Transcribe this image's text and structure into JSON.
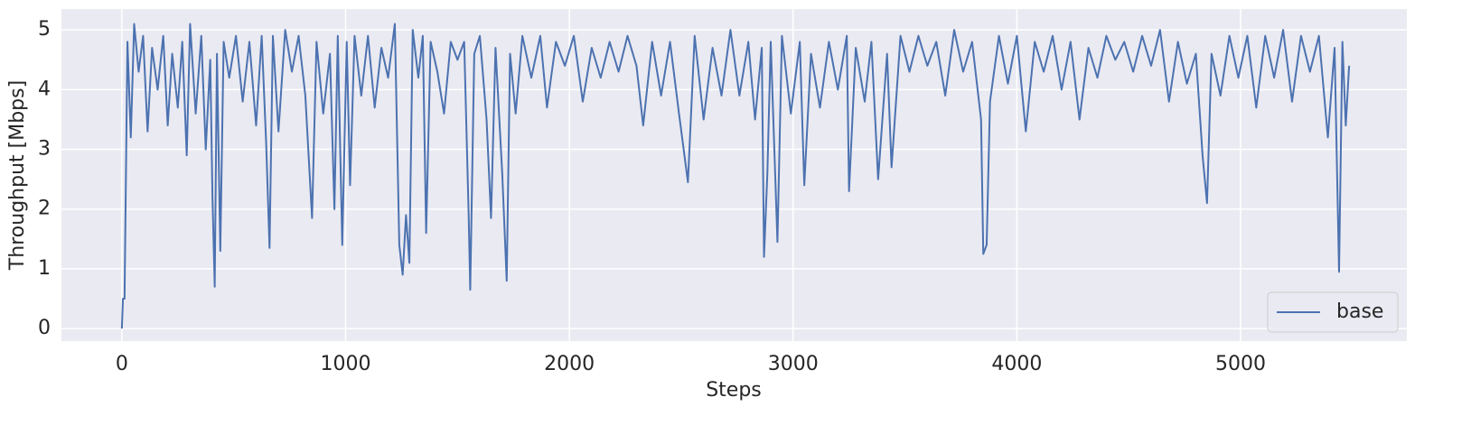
{
  "chart_data": {
    "type": "line",
    "xlabel": "Steps",
    "ylabel": "Throughput [Mbps]",
    "xlim": [
      -270,
      5743
    ],
    "ylim": [
      -0.21,
      5.35
    ],
    "xticks": [
      0,
      1000,
      2000,
      3000,
      4000,
      5000
    ],
    "yticks": [
      0,
      1,
      2,
      3,
      4,
      5
    ],
    "grid": true,
    "legend": "lower right",
    "x": [
      0,
      5,
      12,
      25,
      40,
      55,
      75,
      95,
      115,
      135,
      160,
      185,
      205,
      225,
      250,
      270,
      290,
      305,
      330,
      355,
      375,
      395,
      405,
      415,
      425,
      440,
      455,
      480,
      510,
      540,
      570,
      600,
      625,
      645,
      660,
      675,
      700,
      730,
      760,
      790,
      820,
      850,
      870,
      900,
      930,
      950,
      965,
      985,
      1005,
      1020,
      1040,
      1070,
      1100,
      1130,
      1160,
      1190,
      1220,
      1240,
      1255,
      1270,
      1285,
      1300,
      1325,
      1345,
      1360,
      1380,
      1410,
      1440,
      1470,
      1500,
      1530,
      1550,
      1557,
      1575,
      1600,
      1630,
      1650,
      1670,
      1700,
      1720,
      1735,
      1760,
      1790,
      1830,
      1870,
      1900,
      1940,
      1980,
      2020,
      2060,
      2100,
      2140,
      2180,
      2220,
      2260,
      2300,
      2330,
      2370,
      2410,
      2450,
      2490,
      2530,
      2560,
      2600,
      2640,
      2680,
      2720,
      2760,
      2800,
      2830,
      2860,
      2870,
      2885,
      2900,
      2930,
      2950,
      2990,
      3030,
      3050,
      3080,
      3120,
      3160,
      3200,
      3240,
      3250,
      3280,
      3320,
      3350,
      3380,
      3420,
      3440,
      3480,
      3520,
      3560,
      3600,
      3640,
      3680,
      3720,
      3760,
      3800,
      3840,
      3850,
      3865,
      3880,
      3920,
      3960,
      4000,
      4040,
      4080,
      4120,
      4160,
      4200,
      4240,
      4280,
      4320,
      4360,
      4400,
      4440,
      4480,
      4520,
      4560,
      4600,
      4640,
      4680,
      4720,
      4760,
      4800,
      4830,
      4850,
      4870,
      4910,
      4950,
      4990,
      5030,
      5070,
      5110,
      5150,
      5190,
      5230,
      5270,
      5310,
      5350,
      5390,
      5420,
      5440,
      5455,
      5470,
      5485
    ],
    "series": [
      {
        "name": "base",
        "color": "#4c72b0",
        "values": [
          0,
          0.5,
          0.5,
          4.8,
          3.2,
          5.1,
          4.3,
          4.9,
          3.3,
          4.7,
          4.0,
          4.9,
          3.4,
          4.6,
          3.7,
          4.8,
          2.9,
          5.1,
          3.6,
          4.9,
          3.0,
          4.5,
          2.2,
          0.7,
          4.6,
          1.3,
          4.8,
          4.2,
          4.9,
          3.8,
          4.8,
          3.4,
          4.9,
          3.1,
          1.35,
          4.9,
          3.3,
          5.0,
          4.3,
          4.9,
          3.9,
          1.85,
          4.8,
          3.6,
          4.6,
          2.0,
          4.9,
          1.4,
          4.8,
          2.4,
          4.9,
          3.9,
          4.9,
          3.7,
          4.7,
          4.2,
          5.1,
          1.4,
          0.9,
          1.9,
          1.1,
          5.0,
          4.2,
          4.9,
          1.6,
          4.8,
          4.3,
          3.6,
          4.8,
          4.5,
          4.8,
          1.9,
          0.65,
          4.6,
          4.9,
          3.5,
          1.85,
          4.7,
          2.6,
          0.8,
          4.6,
          3.6,
          4.9,
          4.2,
          4.9,
          3.7,
          4.8,
          4.4,
          4.9,
          3.8,
          4.7,
          4.2,
          4.8,
          4.3,
          4.9,
          4.4,
          3.4,
          4.8,
          3.9,
          4.8,
          3.6,
          2.45,
          4.9,
          3.5,
          4.7,
          3.9,
          5.0,
          3.9,
          4.8,
          3.5,
          4.7,
          1.2,
          2.6,
          4.8,
          1.45,
          4.9,
          3.6,
          4.8,
          2.4,
          4.6,
          3.7,
          4.8,
          4.0,
          4.9,
          2.3,
          4.7,
          3.8,
          4.8,
          2.5,
          4.6,
          2.7,
          4.9,
          4.3,
          4.9,
          4.4,
          4.8,
          3.9,
          5.0,
          4.3,
          4.8,
          3.5,
          1.25,
          1.4,
          3.8,
          4.9,
          4.1,
          4.9,
          3.3,
          4.8,
          4.3,
          4.9,
          4.0,
          4.8,
          3.5,
          4.7,
          4.2,
          4.9,
          4.5,
          4.8,
          4.3,
          4.9,
          4.4,
          5.0,
          3.8,
          4.8,
          4.1,
          4.6,
          2.9,
          2.1,
          4.6,
          3.9,
          4.9,
          4.2,
          4.9,
          3.7,
          4.9,
          4.2,
          5.0,
          3.8,
          4.9,
          4.3,
          4.9,
          3.2,
          4.7,
          0.95,
          4.8,
          3.4,
          4.4
        ]
      }
    ]
  }
}
